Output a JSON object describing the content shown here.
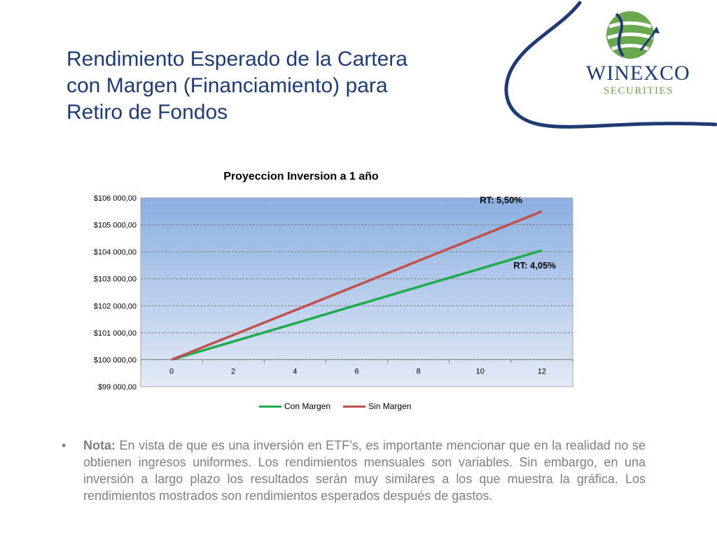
{
  "slide": {
    "title_lines": [
      "Rendimiento Esperado de la Cartera",
      "con Margen (Financiamiento) para",
      "Retiro de Fondos"
    ]
  },
  "logo": {
    "name": "WINEXCO",
    "sub": "SECURITIES",
    "icon": "globe-arrow-icon"
  },
  "colors": {
    "title": "#1f3b73",
    "con_margen": "#1faa4f",
    "sin_margen": "#c0504d",
    "plot_top": "#8aaee0",
    "plot_bottom": "#e3eaf6"
  },
  "chart_data": {
    "type": "line",
    "title": "Proyeccion Inversion a 1 año",
    "x": [
      0,
      2,
      4,
      6,
      8,
      10,
      12
    ],
    "x_tick_labels": [
      "0",
      "2",
      "4",
      "6",
      "8",
      "10",
      "12"
    ],
    "ylim": [
      99000,
      106000
    ],
    "y_tick_values": [
      99000,
      100000,
      101000,
      102000,
      103000,
      104000,
      105000,
      106000
    ],
    "y_tick_labels": [
      "$99 000,00",
      "$100 000,00",
      "$101 000,00",
      "$102 000,00",
      "$103 000,00",
      "$104 000,00",
      "$105 000,00",
      "$106 000,00"
    ],
    "series": [
      {
        "name": "Con Margen",
        "values": [
          100000,
          100675,
          101350,
          102025,
          102700,
          103375,
          104050
        ]
      },
      {
        "name": "Sin Margen",
        "values": [
          100000,
          100917,
          101833,
          102750,
          103667,
          104583,
          105500
        ]
      }
    ],
    "annotations": [
      {
        "text": "RT: 5,50%",
        "series": "Sin Margen"
      },
      {
        "text": "RT: 4,05%",
        "series": "Con Margen"
      }
    ],
    "grid": true,
    "legend_position": "bottom"
  },
  "note": {
    "bullet": "•",
    "label": "Nota:",
    "text": " En vista de que es una inversión en ETF’s, es importante mencionar que en la realidad no se obtienen ingresos uniformes. Los rendimientos mensuales son variables. Sin embargo, en una inversión a largo plazo los resultados serán muy similares a los que muestra la gráfica. Los rendimientos mostrados son rendimientos esperados después de gastos."
  }
}
